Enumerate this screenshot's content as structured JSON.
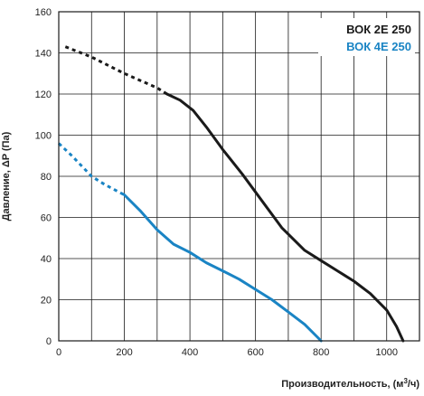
{
  "chart_data": {
    "type": "line",
    "title": "",
    "xlabel": "Производительность, (м",
    "xlabel_sup": "3",
    "xlabel_tail": "/ч)",
    "ylabel": "Давление, ΔP (Па)",
    "xlim": [
      0,
      1100
    ],
    "ylim": [
      0,
      160
    ],
    "xticks": [
      0,
      200,
      400,
      600,
      800,
      1000
    ],
    "yticks": [
      0,
      20,
      40,
      60,
      80,
      100,
      120,
      140,
      160
    ],
    "grid": true,
    "legend_position": "top-right",
    "series": [
      {
        "name": "ВОК 2Е 250",
        "color": "#1a1a1a",
        "dashed_points": [
          [
            20,
            143
          ],
          [
            100,
            138
          ],
          [
            200,
            130
          ],
          [
            300,
            123
          ],
          [
            330,
            120
          ]
        ],
        "solid_points": [
          [
            330,
            120
          ],
          [
            370,
            117
          ],
          [
            410,
            112
          ],
          [
            450,
            104
          ],
          [
            500,
            93
          ],
          [
            560,
            81
          ],
          [
            620,
            68
          ],
          [
            680,
            55
          ],
          [
            750,
            44
          ],
          [
            800,
            39
          ],
          [
            850,
            34
          ],
          [
            900,
            29
          ],
          [
            950,
            23
          ],
          [
            1000,
            15
          ],
          [
            1030,
            7
          ],
          [
            1050,
            0
          ]
        ]
      },
      {
        "name": "ВОК 4Е 250",
        "color": "#1a84c4",
        "dashed_points": [
          [
            0,
            96
          ],
          [
            40,
            90
          ],
          [
            100,
            80
          ],
          [
            140,
            76
          ],
          [
            200,
            71
          ]
        ],
        "solid_points": [
          [
            200,
            71
          ],
          [
            250,
            63
          ],
          [
            300,
            54
          ],
          [
            350,
            47
          ],
          [
            400,
            43
          ],
          [
            450,
            38
          ],
          [
            500,
            34
          ],
          [
            550,
            30
          ],
          [
            600,
            25
          ],
          [
            650,
            20
          ],
          [
            700,
            14
          ],
          [
            750,
            8
          ],
          [
            800,
            0
          ]
        ]
      }
    ]
  }
}
